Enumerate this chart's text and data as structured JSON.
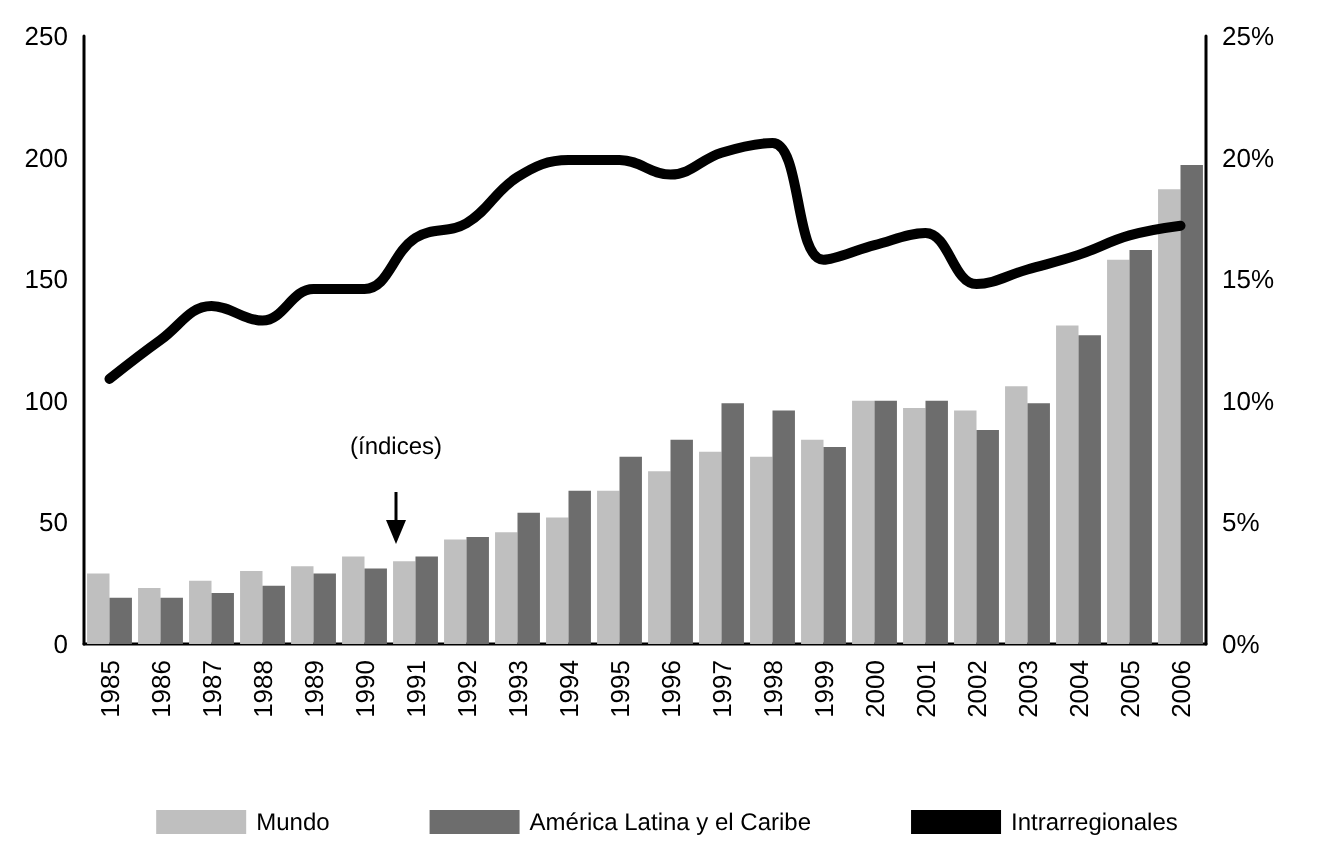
{
  "chart_data": {
    "type": "bar",
    "categories": [
      "1985",
      "1986",
      "1987",
      "1988",
      "1989",
      "1990",
      "1991",
      "1992",
      "1993",
      "1994",
      "1995",
      "1996",
      "1997",
      "1998",
      "1999",
      "2000",
      "2001",
      "2002",
      "2003",
      "2004",
      "2005",
      "2006"
    ],
    "series": [
      {
        "name": "Mundo",
        "color": "#bfbfbf",
        "values": [
          29,
          23,
          26,
          30,
          32,
          36,
          34,
          43,
          46,
          52,
          63,
          71,
          79,
          77,
          84,
          100,
          97,
          96,
          106,
          131,
          158,
          187
        ]
      },
      {
        "name": "América Latina y el Caribe",
        "color": "#6d6d6d",
        "values": [
          19,
          19,
          21,
          24,
          29,
          31,
          36,
          44,
          54,
          63,
          77,
          84,
          99,
          96,
          81,
          100,
          100,
          88,
          99,
          127,
          162,
          197
        ]
      },
      {
        "name": "Intrarregionales",
        "type": "line",
        "axis": "y2",
        "color": "#000000",
        "values": [
          10.9,
          12.5,
          13.9,
          13.3,
          14.6,
          14.6,
          16.7,
          17.3,
          19.2,
          19.9,
          19.9,
          19.3,
          20.2,
          20.6,
          15.8,
          16.4,
          16.9,
          14.8,
          15.4,
          16.0,
          16.8,
          17.2
        ]
      }
    ],
    "ylim": [
      0,
      250
    ],
    "yticks": [
      0,
      50,
      100,
      150,
      200,
      250
    ],
    "y2lim": [
      0,
      25
    ],
    "y2ticks": [
      {
        "value": 0,
        "label": "0%"
      },
      {
        "value": 5,
        "label": "5%"
      },
      {
        "value": 10,
        "label": "10%"
      },
      {
        "value": 15,
        "label": "15%"
      },
      {
        "value": 20,
        "label": "20%"
      },
      {
        "value": 25,
        "label": "25%"
      }
    ],
    "annotations": [
      "(índices)"
    ],
    "legend": "bottom",
    "marker": "none"
  }
}
